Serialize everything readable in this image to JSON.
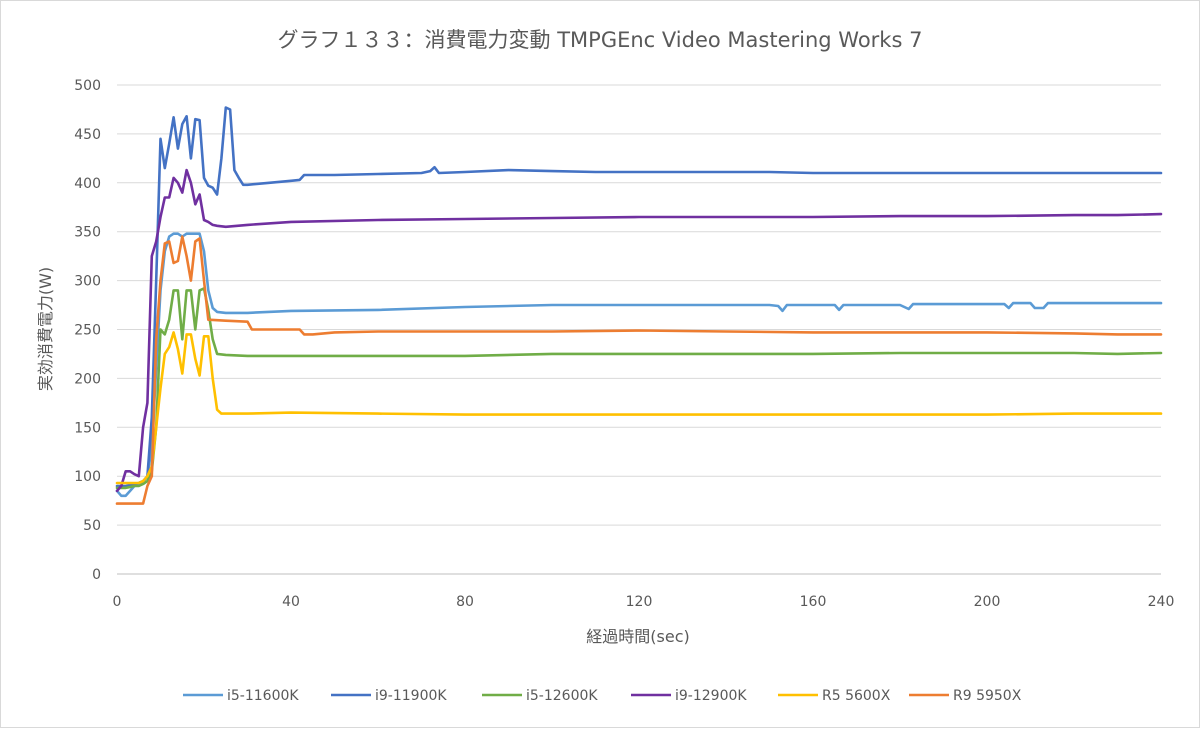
{
  "chart_data": {
    "type": "line",
    "title": "グラフ１３３：消費電力変動 TMPGEnc Video Mastering Works 7",
    "xlabel": "経過時間(sec)",
    "ylabel": "実効消費電力(W)",
    "xlim": [
      0,
      240
    ],
    "ylim": [
      0,
      500
    ],
    "xticks": [
      0,
      40,
      80,
      120,
      160,
      200,
      240
    ],
    "yticks": [
      0,
      50,
      100,
      150,
      200,
      250,
      300,
      350,
      400,
      450,
      500
    ],
    "grid": "horizontal",
    "legend_position": "bottom",
    "series": [
      {
        "name": "i5-11600K",
        "color": "#5B9BD5",
        "points": [
          [
            0,
            85
          ],
          [
            1,
            80
          ],
          [
            2,
            80
          ],
          [
            3,
            85
          ],
          [
            4,
            90
          ],
          [
            5,
            92
          ],
          [
            6,
            94
          ],
          [
            7,
            100
          ],
          [
            8,
            130
          ],
          [
            9,
            210
          ],
          [
            10,
            290
          ],
          [
            11,
            330
          ],
          [
            12,
            345
          ],
          [
            13,
            348
          ],
          [
            14,
            348
          ],
          [
            15,
            345
          ],
          [
            16,
            348
          ],
          [
            17,
            348
          ],
          [
            18,
            348
          ],
          [
            19,
            348
          ],
          [
            20,
            330
          ],
          [
            21,
            290
          ],
          [
            22,
            272
          ],
          [
            23,
            268
          ],
          [
            25,
            267
          ],
          [
            30,
            267
          ],
          [
            40,
            269
          ],
          [
            60,
            270
          ],
          [
            80,
            273
          ],
          [
            100,
            275
          ],
          [
            120,
            275
          ],
          [
            140,
            275
          ],
          [
            150,
            275
          ],
          [
            152,
            274
          ],
          [
            153,
            269
          ],
          [
            154,
            275
          ],
          [
            160,
            275
          ],
          [
            165,
            275
          ],
          [
            166,
            270
          ],
          [
            167,
            275
          ],
          [
            180,
            275
          ],
          [
            182,
            271
          ],
          [
            183,
            276
          ],
          [
            200,
            276
          ],
          [
            204,
            276
          ],
          [
            205,
            272
          ],
          [
            206,
            277
          ],
          [
            210,
            277
          ],
          [
            211,
            272
          ],
          [
            213,
            272
          ],
          [
            214,
            277
          ],
          [
            240,
            277
          ]
        ]
      },
      {
        "name": "i9-11900K",
        "color": "#4472C4",
        "points": [
          [
            0,
            90
          ],
          [
            1,
            90
          ],
          [
            2,
            90
          ],
          [
            3,
            91
          ],
          [
            4,
            92
          ],
          [
            5,
            93
          ],
          [
            6,
            95
          ],
          [
            7,
            100
          ],
          [
            8,
            160
          ],
          [
            9,
            300
          ],
          [
            10,
            445
          ],
          [
            11,
            415
          ],
          [
            12,
            440
          ],
          [
            13,
            467
          ],
          [
            14,
            435
          ],
          [
            15,
            460
          ],
          [
            16,
            468
          ],
          [
            17,
            425
          ],
          [
            18,
            465
          ],
          [
            19,
            464
          ],
          [
            20,
            405
          ],
          [
            21,
            397
          ],
          [
            22,
            395
          ],
          [
            23,
            388
          ],
          [
            24,
            425
          ],
          [
            25,
            477
          ],
          [
            26,
            475
          ],
          [
            27,
            413
          ],
          [
            28,
            405
          ],
          [
            29,
            398
          ],
          [
            30,
            398
          ],
          [
            35,
            400
          ],
          [
            40,
            402
          ],
          [
            42,
            403
          ],
          [
            43,
            408
          ],
          [
            50,
            408
          ],
          [
            60,
            409
          ],
          [
            70,
            410
          ],
          [
            72,
            412
          ],
          [
            73,
            416
          ],
          [
            74,
            410
          ],
          [
            80,
            411
          ],
          [
            90,
            413
          ],
          [
            100,
            412
          ],
          [
            110,
            411
          ],
          [
            120,
            411
          ],
          [
            130,
            411
          ],
          [
            140,
            411
          ],
          [
            150,
            411
          ],
          [
            160,
            410
          ],
          [
            170,
            410
          ],
          [
            180,
            410
          ],
          [
            190,
            410
          ],
          [
            200,
            410
          ],
          [
            210,
            410
          ],
          [
            220,
            410
          ],
          [
            230,
            410
          ],
          [
            240,
            410
          ]
        ]
      },
      {
        "name": "i5-12600K",
        "color": "#70AD47",
        "points": [
          [
            0,
            88
          ],
          [
            1,
            88
          ],
          [
            2,
            88
          ],
          [
            3,
            89
          ],
          [
            4,
            90
          ],
          [
            5,
            90
          ],
          [
            6,
            92
          ],
          [
            7,
            95
          ],
          [
            8,
            105
          ],
          [
            9,
            150
          ],
          [
            10,
            250
          ],
          [
            11,
            245
          ],
          [
            12,
            260
          ],
          [
            13,
            290
          ],
          [
            14,
            290
          ],
          [
            15,
            240
          ],
          [
            16,
            290
          ],
          [
            17,
            290
          ],
          [
            18,
            250
          ],
          [
            19,
            290
          ],
          [
            20,
            292
          ],
          [
            21,
            270
          ],
          [
            22,
            240
          ],
          [
            23,
            225
          ],
          [
            25,
            224
          ],
          [
            30,
            223
          ],
          [
            40,
            223
          ],
          [
            60,
            223
          ],
          [
            80,
            223
          ],
          [
            100,
            225
          ],
          [
            120,
            225
          ],
          [
            140,
            225
          ],
          [
            160,
            225
          ],
          [
            180,
            226
          ],
          [
            200,
            226
          ],
          [
            220,
            226
          ],
          [
            230,
            225
          ],
          [
            240,
            226
          ]
        ]
      },
      {
        "name": "i9-12900K",
        "color": "#7030A0",
        "points": [
          [
            0,
            85
          ],
          [
            1,
            90
          ],
          [
            2,
            105
          ],
          [
            3,
            105
          ],
          [
            4,
            102
          ],
          [
            5,
            100
          ],
          [
            6,
            150
          ],
          [
            7,
            175
          ],
          [
            8,
            325
          ],
          [
            9,
            340
          ],
          [
            10,
            365
          ],
          [
            11,
            385
          ],
          [
            12,
            385
          ],
          [
            13,
            405
          ],
          [
            14,
            400
          ],
          [
            15,
            390
          ],
          [
            16,
            413
          ],
          [
            17,
            400
          ],
          [
            18,
            378
          ],
          [
            19,
            388
          ],
          [
            20,
            362
          ],
          [
            21,
            360
          ],
          [
            22,
            357
          ],
          [
            23,
            356
          ],
          [
            25,
            355
          ],
          [
            30,
            357
          ],
          [
            40,
            360
          ],
          [
            60,
            362
          ],
          [
            80,
            363
          ],
          [
            100,
            364
          ],
          [
            120,
            365
          ],
          [
            140,
            365
          ],
          [
            160,
            365
          ],
          [
            180,
            366
          ],
          [
            200,
            366
          ],
          [
            220,
            367
          ],
          [
            230,
            367
          ],
          [
            240,
            368
          ]
        ]
      },
      {
        "name": "R5 5600X",
        "color": "#FFC000",
        "points": [
          [
            0,
            93
          ],
          [
            1,
            93
          ],
          [
            2,
            93
          ],
          [
            3,
            93
          ],
          [
            4,
            93
          ],
          [
            5,
            93
          ],
          [
            6,
            95
          ],
          [
            7,
            100
          ],
          [
            8,
            110
          ],
          [
            9,
            150
          ],
          [
            10,
            190
          ],
          [
            11,
            225
          ],
          [
            12,
            232
          ],
          [
            13,
            247
          ],
          [
            14,
            230
          ],
          [
            15,
            205
          ],
          [
            16,
            245
          ],
          [
            17,
            245
          ],
          [
            18,
            220
          ],
          [
            19,
            203
          ],
          [
            20,
            243
          ],
          [
            21,
            243
          ],
          [
            22,
            200
          ],
          [
            23,
            168
          ],
          [
            24,
            164
          ],
          [
            30,
            164
          ],
          [
            40,
            165
          ],
          [
            60,
            164
          ],
          [
            80,
            163
          ],
          [
            90,
            163
          ],
          [
            100,
            163
          ],
          [
            120,
            163
          ],
          [
            140,
            163
          ],
          [
            160,
            163
          ],
          [
            180,
            163
          ],
          [
            200,
            163
          ],
          [
            220,
            164
          ],
          [
            230,
            164
          ],
          [
            240,
            164
          ]
        ]
      },
      {
        "name": "R9 5950X",
        "color": "#ED7D31",
        "points": [
          [
            0,
            72
          ],
          [
            5,
            72
          ],
          [
            6,
            72
          ],
          [
            7,
            90
          ],
          [
            8,
            100
          ],
          [
            9,
            240
          ],
          [
            10,
            300
          ],
          [
            11,
            338
          ],
          [
            12,
            340
          ],
          [
            13,
            318
          ],
          [
            14,
            320
          ],
          [
            15,
            345
          ],
          [
            16,
            325
          ],
          [
            17,
            300
          ],
          [
            18,
            340
          ],
          [
            19,
            343
          ],
          [
            20,
            300
          ],
          [
            21,
            260
          ],
          [
            25,
            259
          ],
          [
            30,
            258
          ],
          [
            31,
            250
          ],
          [
            35,
            250
          ],
          [
            42,
            250
          ],
          [
            43,
            245
          ],
          [
            45,
            245
          ],
          [
            50,
            247
          ],
          [
            60,
            248
          ],
          [
            80,
            248
          ],
          [
            100,
            248
          ],
          [
            120,
            249
          ],
          [
            140,
            248
          ],
          [
            160,
            247
          ],
          [
            180,
            247
          ],
          [
            200,
            247
          ],
          [
            220,
            246
          ],
          [
            230,
            245
          ],
          [
            240,
            245
          ]
        ]
      }
    ]
  }
}
